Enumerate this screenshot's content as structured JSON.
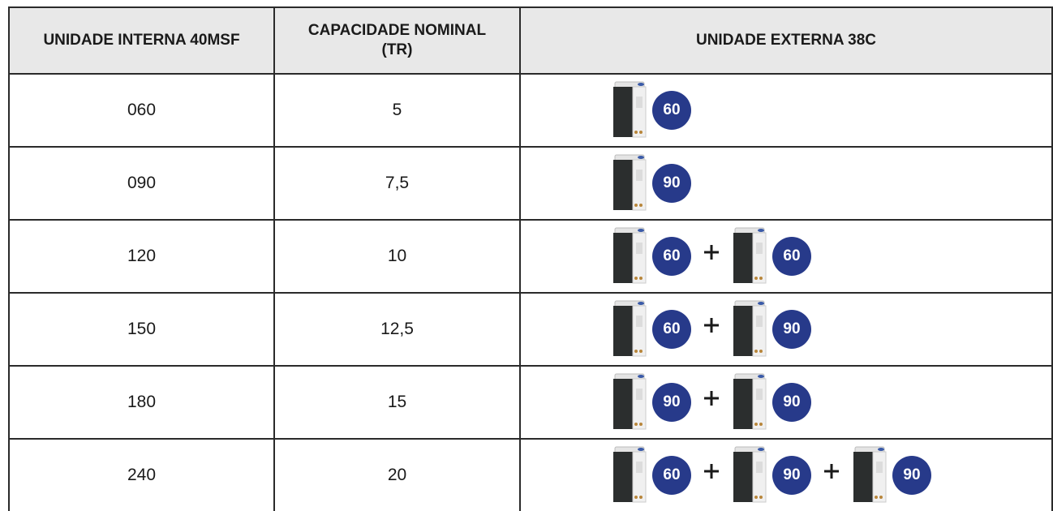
{
  "table": {
    "header": [
      "UNIDADE INTERNA 40MSF",
      "CAPACIDADE NOMINAL (TR)",
      "UNIDADE EXTERNA 38C"
    ],
    "rows": [
      [
        "060",
        "5",
        [
          "60"
        ]
      ],
      [
        "090",
        "7,5",
        [
          "90"
        ]
      ],
      [
        "120",
        "10",
        [
          "60",
          "60"
        ]
      ],
      [
        "150",
        "12,5",
        [
          "60",
          "90"
        ]
      ],
      [
        "180",
        "15",
        [
          "90",
          "90"
        ]
      ],
      [
        "240",
        "20",
        [
          "60",
          "90",
          "90"
        ]
      ]
    ]
  }
}
